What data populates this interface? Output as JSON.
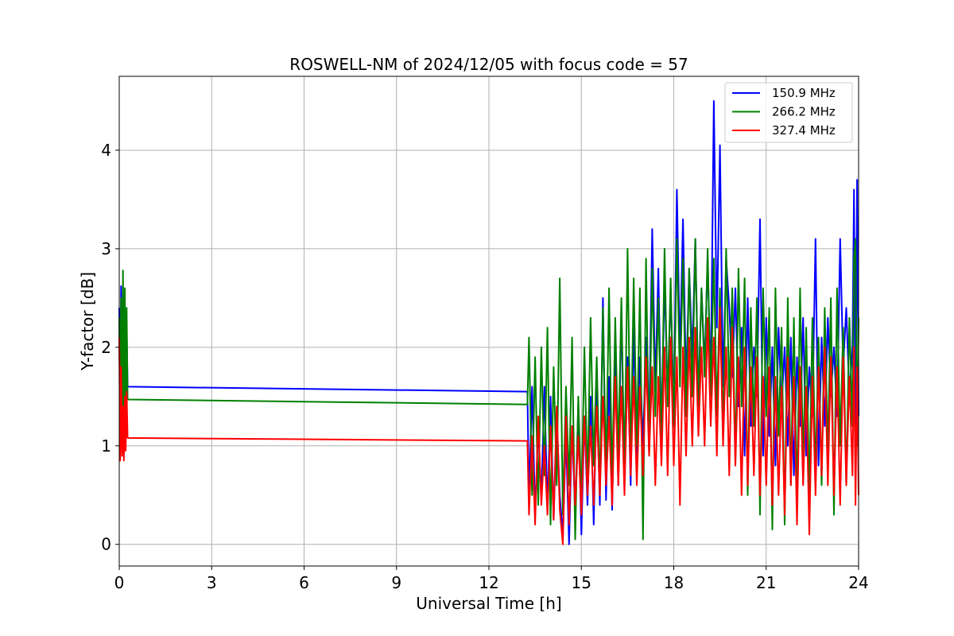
{
  "chart_data": {
    "type": "line",
    "title": "ROSWELL-NM of 2024/12/05 with focus code = 57",
    "xlabel": "Universal Time [h]",
    "ylabel": "Y-factor [dB]",
    "xlim": [
      0,
      24
    ],
    "ylim": [
      -0.22,
      4.75
    ],
    "xticks": [
      0,
      3,
      6,
      9,
      12,
      15,
      18,
      21,
      24
    ],
    "yticks": [
      0,
      1,
      2,
      3,
      4
    ],
    "grid": true,
    "legend_position": "upper right",
    "series": [
      {
        "name": "150.9 MHz",
        "color": "#0000ff",
        "x": [
          0.0,
          0.03,
          0.06,
          0.09,
          0.12,
          0.15,
          0.18,
          0.21,
          0.24,
          0.27,
          13.25,
          13.3,
          13.4,
          13.5,
          13.6,
          13.7,
          13.8,
          13.9,
          14.0,
          14.1,
          14.2,
          14.3,
          14.4,
          14.5,
          14.6,
          14.7,
          14.8,
          14.9,
          15.0,
          15.1,
          15.2,
          15.3,
          15.4,
          15.5,
          15.6,
          15.7,
          15.8,
          15.9,
          16.0,
          16.1,
          16.2,
          16.3,
          16.4,
          16.5,
          16.6,
          16.7,
          16.8,
          16.9,
          17.0,
          17.1,
          17.2,
          17.3,
          17.4,
          17.5,
          17.6,
          17.7,
          17.8,
          17.9,
          18.0,
          18.1,
          18.2,
          18.3,
          18.4,
          18.5,
          18.6,
          18.7,
          18.8,
          18.9,
          19.0,
          19.1,
          19.2,
          19.3,
          19.4,
          19.5,
          19.6,
          19.7,
          19.8,
          19.9,
          20.0,
          20.1,
          20.2,
          20.3,
          20.4,
          20.5,
          20.6,
          20.7,
          20.8,
          20.9,
          21.0,
          21.1,
          21.2,
          21.3,
          21.4,
          21.5,
          21.6,
          21.7,
          21.8,
          21.9,
          22.0,
          22.1,
          22.2,
          22.3,
          22.4,
          22.5,
          22.6,
          22.7,
          22.8,
          22.9,
          23.0,
          23.1,
          23.2,
          23.3,
          23.4,
          23.5,
          23.6,
          23.7,
          23.8,
          23.85,
          23.9,
          23.95,
          24.0
        ],
        "y": [
          2.4,
          1.0,
          2.62,
          0.9,
          2.3,
          1.1,
          2.45,
          1.3,
          2.2,
          1.6,
          1.55,
          0.45,
          1.6,
          0.3,
          1.2,
          0.45,
          1.6,
          0.35,
          1.5,
          0.25,
          1.3,
          0.5,
          0.1,
          1.1,
          0.0,
          1.2,
          0.3,
          1.4,
          0.1,
          1.3,
          0.4,
          1.5,
          0.2,
          1.6,
          0.4,
          2.5,
          0.45,
          1.7,
          0.35,
          2.0,
          0.6,
          2.4,
          0.7,
          1.9,
          0.6,
          2.2,
          0.8,
          1.9,
          1.0,
          2.1,
          1.2,
          3.2,
          1.6,
          2.8,
          1.1,
          2.7,
          1.5,
          2.6,
          1.3,
          3.6,
          1.9,
          3.3,
          1.6,
          2.8,
          1.9,
          3.1,
          1.5,
          2.6,
          1.8,
          2.9,
          1.6,
          4.5,
          2.2,
          4.05,
          1.6,
          2.9,
          2.4,
          1.7,
          2.6,
          1.4,
          2.2,
          0.9,
          2.5,
          1.2,
          2.0,
          1.5,
          3.3,
          0.9,
          2.3,
          1.1,
          2.0,
          0.8,
          2.2,
          1.4,
          2.0,
          1.0,
          2.1,
          0.7,
          1.9,
          1.2,
          2.3,
          0.9,
          1.8,
          1.3,
          3.1,
          0.8,
          2.1,
          1.2,
          2.3,
          1.5,
          2.0,
          1.3,
          3.1,
          1.8,
          2.4,
          1.5,
          2.0,
          3.6,
          1.2,
          3.7,
          1.3
        ]
      },
      {
        "name": "266.2 MHz",
        "color": "#008000",
        "x": [
          0.0,
          0.03,
          0.06,
          0.09,
          0.12,
          0.15,
          0.18,
          0.21,
          0.24,
          0.27,
          13.25,
          13.3,
          13.4,
          13.5,
          13.6,
          13.7,
          13.8,
          13.9,
          14.0,
          14.1,
          14.2,
          14.3,
          14.4,
          14.5,
          14.6,
          14.7,
          14.8,
          14.9,
          15.0,
          15.1,
          15.2,
          15.3,
          15.4,
          15.5,
          15.6,
          15.7,
          15.8,
          15.9,
          16.0,
          16.1,
          16.2,
          16.3,
          16.4,
          16.5,
          16.6,
          16.7,
          16.8,
          16.9,
          17.0,
          17.1,
          17.2,
          17.3,
          17.4,
          17.5,
          17.6,
          17.7,
          17.8,
          17.9,
          18.0,
          18.1,
          18.2,
          18.3,
          18.4,
          18.5,
          18.6,
          18.7,
          18.8,
          18.9,
          19.0,
          19.1,
          19.2,
          19.3,
          19.4,
          19.5,
          19.6,
          19.7,
          19.8,
          19.9,
          20.0,
          20.1,
          20.2,
          20.3,
          20.4,
          20.5,
          20.6,
          20.7,
          20.8,
          20.9,
          21.0,
          21.1,
          21.2,
          21.3,
          21.4,
          21.5,
          21.6,
          21.7,
          21.8,
          21.9,
          22.0,
          22.1,
          22.2,
          22.3,
          22.4,
          22.5,
          22.6,
          22.7,
          22.8,
          22.9,
          23.0,
          23.1,
          23.2,
          23.3,
          23.4,
          23.5,
          23.6,
          23.7,
          23.8,
          23.85,
          23.9,
          23.95,
          24.0
        ],
        "y": [
          2.3,
          1.2,
          2.5,
          1.0,
          2.78,
          1.3,
          2.6,
          1.5,
          2.4,
          1.47,
          1.42,
          2.1,
          0.5,
          1.9,
          0.4,
          2.0,
          0.7,
          2.2,
          0.2,
          1.8,
          0.6,
          2.7,
          0.3,
          1.6,
          0.6,
          2.1,
          0.05,
          1.5,
          0.4,
          2.0,
          0.6,
          2.3,
          0.8,
          1.9,
          0.5,
          2.4,
          0.7,
          2.6,
          0.6,
          2.3,
          0.9,
          2.5,
          0.7,
          3.0,
          0.8,
          2.7,
          1.0,
          2.6,
          0.05,
          2.9,
          0.9,
          2.8,
          1.3,
          2.5,
          1.0,
          3.0,
          1.4,
          2.7,
          1.2,
          3.1,
          1.6,
          2.9,
          1.3,
          2.8,
          1.5,
          3.1,
          1.4,
          2.6,
          1.7,
          3.0,
          1.5,
          2.9,
          1.3,
          2.6,
          1.1,
          3.0,
          1.5,
          2.6,
          0.8,
          2.8,
          1.4,
          2.7,
          0.5,
          2.4,
          1.2,
          2.5,
          0.3,
          2.6,
          1.3,
          2.4,
          0.15,
          2.6,
          1.1,
          2.2,
          0.2,
          2.5,
          0.6,
          2.3,
          0.4,
          2.6,
          0.8,
          2.2,
          0.5,
          2.3,
          0.7,
          2.1,
          0.6,
          2.4,
          0.9,
          2.5,
          0.3,
          2.6,
          1.0,
          2.2,
          0.6,
          2.3,
          1.2,
          2.9,
          3.1,
          1.0,
          2.3
        ]
      },
      {
        "name": "327.4 MHz",
        "color": "#ff0000",
        "x": [
          0.0,
          0.03,
          0.06,
          0.09,
          0.12,
          0.15,
          0.18,
          0.21,
          0.24,
          0.27,
          13.25,
          13.3,
          13.4,
          13.5,
          13.6,
          13.7,
          13.8,
          13.9,
          14.0,
          14.1,
          14.2,
          14.3,
          14.4,
          14.5,
          14.6,
          14.7,
          14.8,
          14.9,
          15.0,
          15.1,
          15.2,
          15.3,
          15.4,
          15.5,
          15.6,
          15.7,
          15.8,
          15.9,
          16.0,
          16.1,
          16.2,
          16.3,
          16.4,
          16.5,
          16.6,
          16.7,
          16.8,
          16.9,
          17.0,
          17.1,
          17.2,
          17.3,
          17.4,
          17.5,
          17.6,
          17.7,
          17.8,
          17.9,
          18.0,
          18.1,
          18.2,
          18.3,
          18.4,
          18.5,
          18.6,
          18.7,
          18.8,
          18.9,
          19.0,
          19.1,
          19.2,
          19.3,
          19.4,
          19.5,
          19.6,
          19.7,
          19.8,
          19.9,
          20.0,
          20.1,
          20.2,
          20.3,
          20.4,
          20.5,
          20.6,
          20.7,
          20.8,
          20.9,
          21.0,
          21.1,
          21.2,
          21.3,
          21.4,
          21.5,
          21.6,
          21.7,
          21.8,
          21.9,
          22.0,
          22.1,
          22.2,
          22.3,
          22.4,
          22.5,
          22.6,
          22.7,
          22.8,
          22.9,
          23.0,
          23.1,
          23.2,
          23.3,
          23.4,
          23.5,
          23.6,
          23.7,
          23.8,
          23.85,
          23.9,
          23.95,
          24.0
        ],
        "y": [
          2.1,
          0.85,
          1.8,
          0.9,
          1.4,
          0.85,
          1.5,
          0.95,
          1.55,
          1.08,
          1.05,
          0.3,
          1.1,
          0.2,
          1.3,
          0.4,
          1.0,
          0.3,
          1.2,
          0.25,
          1.4,
          0.35,
          0.0,
          1.3,
          0.2,
          1.2,
          0.4,
          1.1,
          0.3,
          1.3,
          0.5,
          1.2,
          0.4,
          1.4,
          0.5,
          1.5,
          0.6,
          1.3,
          0.4,
          1.7,
          0.6,
          1.6,
          0.5,
          1.8,
          0.7,
          1.7,
          0.6,
          1.6,
          0.7,
          1.9,
          0.9,
          1.8,
          0.6,
          1.7,
          0.8,
          2.0,
          0.7,
          2.1,
          0.8,
          1.9,
          0.4,
          2.0,
          0.9,
          2.1,
          1.0,
          2.2,
          1.1,
          2.0,
          1.0,
          2.3,
          1.2,
          2.1,
          0.9,
          2.4,
          1.0,
          2.0,
          0.7,
          2.2,
          0.8,
          1.9,
          0.5,
          2.0,
          0.6,
          1.8,
          0.7,
          1.9,
          0.5,
          1.7,
          0.6,
          1.8,
          0.4,
          1.7,
          0.5,
          1.6,
          0.3,
          1.9,
          0.6,
          1.7,
          0.2,
          1.8,
          0.6,
          1.6,
          0.1,
          1.7,
          0.5,
          1.8,
          0.7,
          2.0,
          0.6,
          1.9,
          0.5,
          1.8,
          0.4,
          1.9,
          0.6,
          1.7,
          0.7,
          2.0,
          0.4,
          1.8,
          0.5
        ]
      }
    ]
  }
}
